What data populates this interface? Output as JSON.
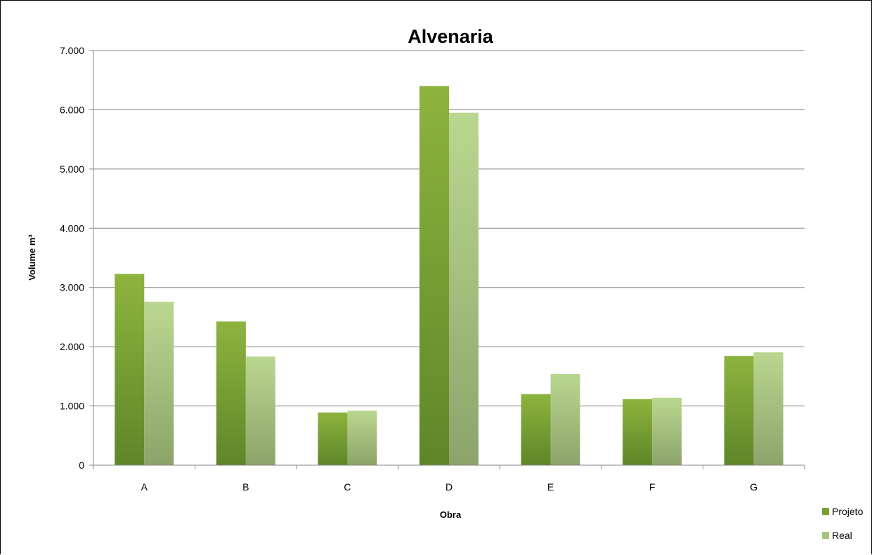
{
  "chart_data": {
    "type": "bar",
    "title": "Alvenaria",
    "xlabel": "Obra",
    "ylabel": "Volume m³",
    "categories": [
      "A",
      "B",
      "C",
      "D",
      "E",
      "F",
      "G"
    ],
    "series": [
      {
        "name": "Projeto",
        "values": [
          3230,
          2425,
          890,
          6400,
          1200,
          1115,
          1845
        ]
      },
      {
        "name": "Real",
        "values": [
          2760,
          1835,
          920,
          5950,
          1540,
          1140,
          1905
        ]
      }
    ],
    "ylim": [
      0,
      7000
    ],
    "yticks": [
      0,
      1000,
      2000,
      3000,
      4000,
      5000,
      6000,
      7000
    ],
    "ytick_labels": [
      "0",
      "1.000",
      "2.000",
      "3.000",
      "4.000",
      "5.000",
      "6.000",
      "7.000"
    ],
    "grid": true,
    "legend_position": "right",
    "colors": {
      "Projeto": {
        "light": "#8db43e",
        "dark": "#5e8628"
      },
      "Real": {
        "light": "#bad790",
        "dark": "#8ca46a"
      },
      "grid": "#868686",
      "axis": "#868686"
    }
  }
}
